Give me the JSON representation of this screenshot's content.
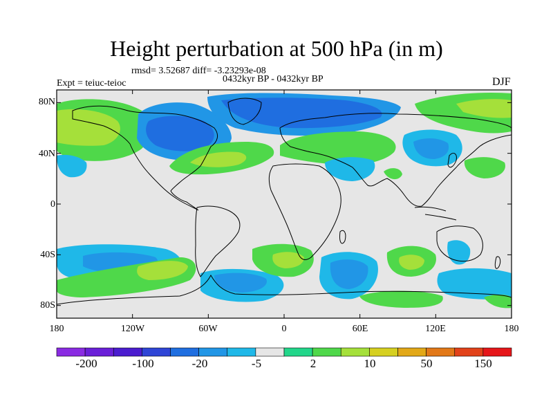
{
  "title": "Height perturbation at 500 hPa (in m)",
  "stats_line": "rmsd= 3.52687 diff= -3.23293e-08",
  "period_line": "0432kyr BP - 0432kyr BP",
  "experiment_line": "Expt = teiuc-teioc",
  "season": "DJF",
  "axes": {
    "lat_ticks": [
      {
        "label": "80N",
        "value": 80
      },
      {
        "label": "40N",
        "value": 40
      },
      {
        "label": "0",
        "value": 0
      },
      {
        "label": "40S",
        "value": -40
      },
      {
        "label": "80S",
        "value": -80
      }
    ],
    "lon_ticks": [
      {
        "label": "180",
        "value": -180
      },
      {
        "label": "120W",
        "value": -120
      },
      {
        "label": "60W",
        "value": -60
      },
      {
        "label": "0",
        "value": 0
      },
      {
        "label": "60E",
        "value": 60
      },
      {
        "label": "120E",
        "value": 120
      },
      {
        "label": "180",
        "value": 180
      }
    ]
  },
  "colorbar": {
    "colors": [
      "#8a2be2",
      "#6a1fd8",
      "#4b1ccf",
      "#2f45d6",
      "#1f6ee0",
      "#2196e6",
      "#1fb8e8",
      "#e6e6e6",
      "#22d68a",
      "#4fd84a",
      "#a5e03a",
      "#d6d020",
      "#e2a818",
      "#e27818",
      "#e2421a",
      "#e6161a"
    ],
    "labels": [
      "-200",
      "-100",
      "-20",
      "-5",
      "2",
      "10",
      "50",
      "150"
    ]
  },
  "field_colors": {
    "neutral": "#e6e6e6",
    "cyan": "#1fb8e8",
    "blue_light": "#2196e6",
    "blue": "#1f6ee0",
    "teal_green": "#22d68a",
    "green": "#4fd84a",
    "yellow_green": "#a5e03a"
  }
}
